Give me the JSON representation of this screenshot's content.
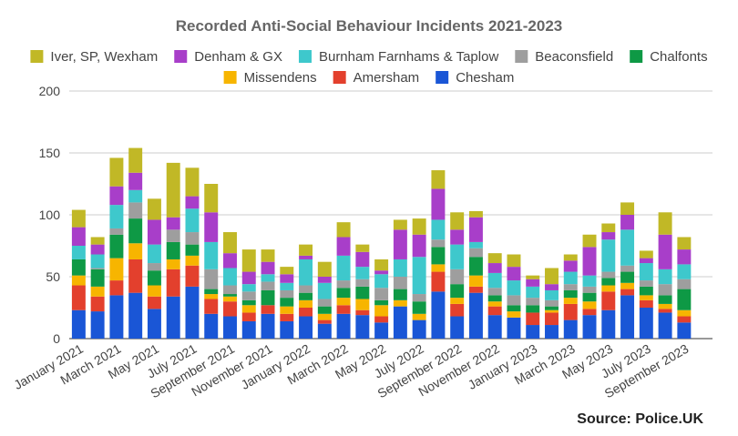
{
  "chart_data": {
    "type": "bar",
    "stacked": true,
    "title": "Recorded Anti-Social Behaviour Incidents 2021-2023",
    "source": "Source: Police.UK",
    "ylim": [
      0,
      200
    ],
    "yticks": [
      0,
      50,
      100,
      150,
      200
    ],
    "grid": true,
    "legend_position": "top",
    "categories": [
      "January 2021",
      "February 2021",
      "March 2021",
      "April 2021",
      "May 2021",
      "June 2021",
      "July 2021",
      "August 2021",
      "September 2021",
      "October 2021",
      "November 2021",
      "December 2021",
      "January 2022",
      "February 2022",
      "March 2022",
      "April 2022",
      "May 2022",
      "June 2022",
      "July 2022",
      "August 2022",
      "September 2022",
      "October 2022",
      "November 2022",
      "December 2022",
      "January 2023",
      "February 2023",
      "March 2023",
      "April 2023",
      "May 2023",
      "June 2023",
      "July 2023",
      "August 2023",
      "September 2023",
      "October 2023"
    ],
    "xtick_labels": [
      "January 2021",
      "March 2021",
      "May 2021",
      "July 2021",
      "September 2021",
      "November 2021",
      "January 2022",
      "March 2022",
      "May 2022",
      "July 2022",
      "September 2022",
      "November 2022",
      "January 2023",
      "March 2023",
      "May 2023",
      "July 2023",
      "September 2023"
    ],
    "series": [
      {
        "name": "Chesham",
        "color": "#1a56d6",
        "values": [
          23,
          22,
          35,
          37,
          24,
          34,
          42,
          20,
          18,
          14,
          20,
          14,
          18,
          12,
          20,
          19,
          13,
          26,
          15,
          38,
          18,
          37,
          19,
          17,
          11,
          11,
          15,
          19,
          23,
          35,
          25,
          21,
          13,
          0
        ]
      },
      {
        "name": "Amersham",
        "color": "#e3402d",
        "values": [
          20,
          12,
          12,
          27,
          10,
          22,
          17,
          12,
          12,
          7,
          7,
          6,
          7,
          3,
          7,
          4,
          5,
          0,
          0,
          16,
          10,
          5,
          7,
          0,
          10,
          10,
          13,
          5,
          15,
          5,
          6,
          3,
          5,
          0
        ]
      },
      {
        "name": "Missendens",
        "color": "#f7b500",
        "values": [
          8,
          8,
          18,
          13,
          9,
          8,
          8,
          4,
          4,
          6,
          0,
          6,
          6,
          5,
          6,
          9,
          9,
          5,
          5,
          6,
          5,
          9,
          4,
          5,
          0,
          2,
          5,
          6,
          5,
          5,
          4,
          4,
          5,
          0
        ]
      },
      {
        "name": "Chalfonts",
        "color": "#0e9945",
        "values": [
          13,
          14,
          19,
          20,
          12,
          14,
          9,
          4,
          2,
          4,
          12,
          7,
          6,
          6,
          8,
          10,
          4,
          9,
          10,
          14,
          11,
          15,
          5,
          5,
          6,
          3,
          6,
          7,
          6,
          9,
          7,
          7,
          17,
          0
        ]
      },
      {
        "name": "Beaconsfield",
        "color": "#9e9e9e",
        "values": [
          0,
          1,
          5,
          13,
          6,
          10,
          10,
          16,
          7,
          7,
          7,
          6,
          6,
          6,
          6,
          6,
          10,
          10,
          6,
          6,
          12,
          7,
          6,
          8,
          6,
          5,
          5,
          5,
          5,
          5,
          5,
          9,
          8,
          0
        ]
      },
      {
        "name": "Burnham Farnhams & Taplow",
        "color": "#3ec8cc",
        "values": [
          11,
          11,
          19,
          10,
          15,
          0,
          19,
          22,
          14,
          6,
          6,
          6,
          21,
          13,
          20,
          10,
          11,
          14,
          30,
          16,
          20,
          5,
          12,
          12,
          9,
          8,
          10,
          9,
          26,
          29,
          14,
          12,
          12,
          0
        ]
      },
      {
        "name": "Denham & GX",
        "color": "#a83ec9",
        "values": [
          15,
          8,
          15,
          14,
          20,
          10,
          10,
          24,
          12,
          10,
          10,
          7,
          3,
          5,
          15,
          12,
          3,
          24,
          18,
          25,
          12,
          20,
          8,
          11,
          6,
          5,
          9,
          23,
          6,
          12,
          4,
          28,
          12,
          0
        ]
      },
      {
        "name": "Iver, SP, Wexham",
        "color": "#c1b826",
        "values": [
          14,
          6,
          23,
          20,
          17,
          44,
          23,
          23,
          17,
          18,
          10,
          6,
          9,
          12,
          12,
          6,
          9,
          8,
          13,
          15,
          14,
          5,
          8,
          10,
          3,
          13,
          5,
          10,
          7,
          10,
          6,
          18,
          10,
          0
        ]
      }
    ]
  }
}
